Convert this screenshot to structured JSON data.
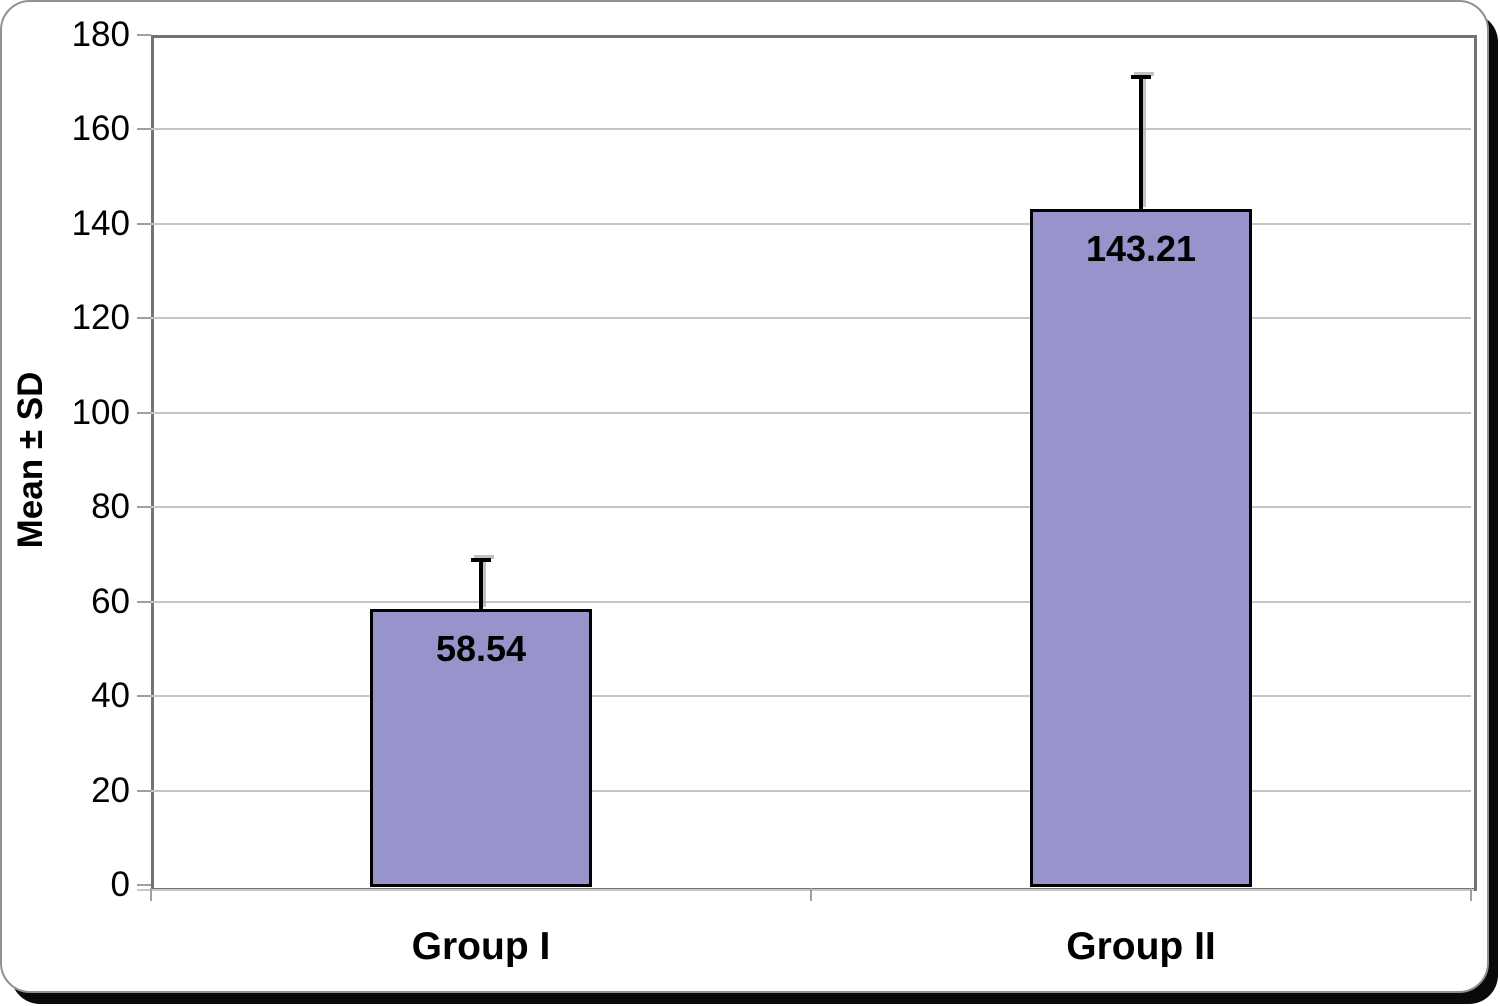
{
  "chart_data": {
    "type": "bar",
    "categories": [
      "Group I",
      "Group II"
    ],
    "values": [
      58.54,
      143.21
    ],
    "value_labels": [
      "58.54",
      "143.21"
    ],
    "error_upper": [
      10.2,
      27.8
    ],
    "title": "",
    "xlabel": "",
    "ylabel": "Mean ± SD",
    "ylim": [
      0,
      180
    ],
    "ytick_step": 20,
    "yticks": [
      0,
      20,
      40,
      60,
      80,
      100,
      120,
      140,
      160,
      180
    ],
    "grid": true,
    "legend_position": "none",
    "colors": {
      "bar_fill": "#9694ca",
      "bar_border": "#000000",
      "gridline": "#c6c6c6",
      "axis_frame": "#737373",
      "tick": "#a0a0a0",
      "text": "#000000",
      "frame_border": "#919191",
      "frame_shadow": "#0a0a0a",
      "background": "#ffffff"
    }
  }
}
